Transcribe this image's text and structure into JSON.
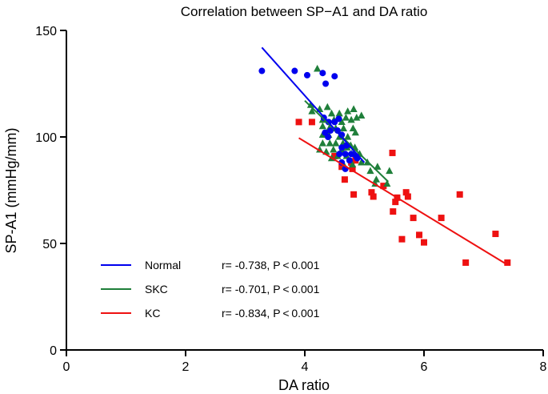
{
  "chart_data": {
    "type": "scatter",
    "title": "Correlation between SP−A1 and DA ratio",
    "xlabel": "DA ratio",
    "ylabel": "SP-A1 (mmHg/mm)",
    "xlim": [
      0,
      8
    ],
    "ylim": [
      0,
      150
    ],
    "xticks": [
      "0",
      "2",
      "4",
      "6",
      "8"
    ],
    "yticks": [
      "0",
      "50",
      "100",
      "150"
    ],
    "series": [
      {
        "name": "Normal",
        "color": "#0000ee",
        "marker": "circle",
        "stats": "r= -0.738, P < 0.001",
        "fit": {
          "x": [
            3.28,
            5.0
          ],
          "y": [
            142,
            88
          ]
        },
        "points": [
          [
            3.28,
            131
          ],
          [
            3.83,
            131
          ],
          [
            4.04,
            129
          ],
          [
            4.3,
            130
          ],
          [
            4.5,
            128.5
          ],
          [
            4.35,
            125
          ],
          [
            4.32,
            109
          ],
          [
            4.4,
            107
          ],
          [
            4.5,
            107
          ],
          [
            4.57,
            108.5
          ],
          [
            4.43,
            103
          ],
          [
            4.55,
            103
          ],
          [
            4.34,
            102
          ],
          [
            4.39,
            100
          ],
          [
            4.62,
            101
          ],
          [
            4.62,
            95
          ],
          [
            4.7,
            96
          ],
          [
            4.58,
            92
          ],
          [
            4.68,
            92
          ],
          [
            4.78,
            92
          ],
          [
            4.86,
            91
          ],
          [
            4.62,
            88
          ],
          [
            4.75,
            89
          ],
          [
            4.68,
            85
          ],
          [
            4.88,
            90
          ]
        ]
      },
      {
        "name": "SKC",
        "color": "#1f7f3a",
        "marker": "triangle",
        "stats": "r= -0.701, P < 0.001",
        "fit": {
          "x": [
            4.0,
            5.4
          ],
          "y": [
            117,
            79
          ]
        },
        "points": [
          [
            4.21,
            132
          ],
          [
            4.1,
            115
          ],
          [
            4.12,
            112
          ],
          [
            4.25,
            113
          ],
          [
            4.38,
            114
          ],
          [
            4.45,
            111
          ],
          [
            4.58,
            111
          ],
          [
            4.72,
            112
          ],
          [
            4.82,
            113
          ],
          [
            4.95,
            110
          ],
          [
            4.3,
            108
          ],
          [
            4.49,
            108
          ],
          [
            4.62,
            107
          ],
          [
            4.69,
            109
          ],
          [
            4.78,
            108
          ],
          [
            4.87,
            109
          ],
          [
            4.3,
            105
          ],
          [
            4.41,
            104
          ],
          [
            4.52,
            104
          ],
          [
            4.65,
            104
          ],
          [
            4.81,
            104
          ],
          [
            4.3,
            101
          ],
          [
            4.4,
            101
          ],
          [
            4.58,
            100
          ],
          [
            4.72,
            100
          ],
          [
            4.85,
            102
          ],
          [
            4.3,
            97
          ],
          [
            4.42,
            97
          ],
          [
            4.52,
            97
          ],
          [
            4.64,
            97
          ],
          [
            4.77,
            96
          ],
          [
            4.25,
            94
          ],
          [
            4.36,
            93
          ],
          [
            4.48,
            94
          ],
          [
            4.62,
            94
          ],
          [
            4.71,
            95
          ],
          [
            4.84,
            95
          ],
          [
            4.45,
            90
          ],
          [
            4.55,
            91
          ],
          [
            4.7,
            91
          ],
          [
            4.82,
            92
          ],
          [
            4.92,
            92
          ],
          [
            4.95,
            88
          ],
          [
            5.05,
            88
          ],
          [
            5.22,
            86
          ],
          [
            5.42,
            84
          ],
          [
            5.2,
            80
          ],
          [
            5.38,
            78
          ],
          [
            4.67,
            86
          ],
          [
            4.8,
            87
          ],
          [
            5.1,
            84
          ],
          [
            5.18,
            78
          ]
        ]
      },
      {
        "name": "KC",
        "color": "#ee1111",
        "marker": "square",
        "stats": "r= -0.834, P < 0.001",
        "fit": {
          "x": [
            3.9,
            7.4
          ],
          "y": [
            99.5,
            40
          ]
        },
        "points": [
          [
            3.9,
            107
          ],
          [
            4.12,
            107
          ],
          [
            4.5,
            91
          ],
          [
            4.62,
            86
          ],
          [
            4.78,
            88
          ],
          [
            4.8,
            85
          ],
          [
            4.85,
            89
          ],
          [
            4.67,
            80
          ],
          [
            4.82,
            73
          ],
          [
            5.12,
            74
          ],
          [
            5.15,
            72
          ],
          [
            5.32,
            77
          ],
          [
            5.47,
            92.5
          ],
          [
            5.48,
            65
          ],
          [
            5.52,
            69.5
          ],
          [
            5.55,
            71.5
          ],
          [
            5.63,
            52
          ],
          [
            5.7,
            74
          ],
          [
            5.73,
            72
          ],
          [
            5.82,
            62
          ],
          [
            5.92,
            54
          ],
          [
            6.0,
            50.5
          ],
          [
            6.29,
            62
          ],
          [
            6.6,
            73
          ],
          [
            6.7,
            41
          ],
          [
            7.2,
            54.5
          ],
          [
            7.4,
            41
          ]
        ]
      }
    ]
  }
}
